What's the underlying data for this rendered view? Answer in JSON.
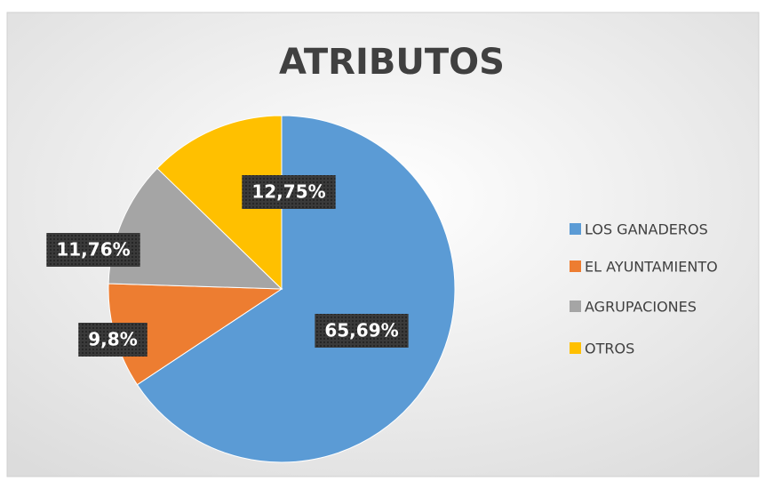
{
  "chart_data": {
    "type": "pie",
    "title": "ATRIBUTOS",
    "categories": [
      "LOS GANADEROS",
      "EL AYUNTAMIENTO",
      "AGRUPACIONES",
      "OTROS"
    ],
    "values": [
      65.69,
      9.8,
      11.76,
      12.75
    ],
    "value_labels": [
      "65,69%",
      "9,8%",
      "11,76%",
      "12,75%"
    ],
    "colors": [
      "#5b9bd5",
      "#ed7d31",
      "#a5a5a5",
      "#ffc000"
    ],
    "legend": "right"
  }
}
